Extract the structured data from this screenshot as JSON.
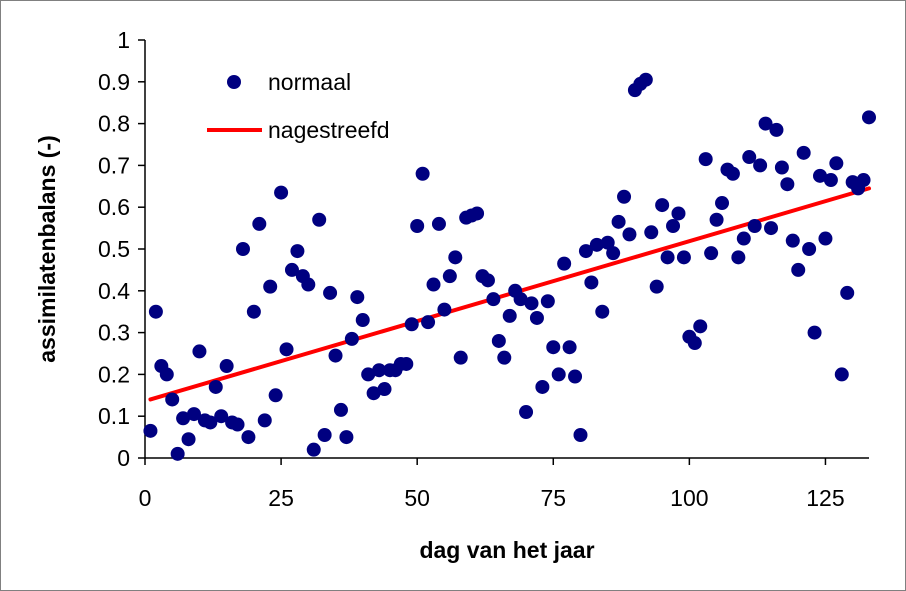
{
  "chart_data": {
    "type": "scatter",
    "title": "",
    "xlabel": "dag van het jaar",
    "ylabel": "assimilatenbalans (-)",
    "xlim": [
      0,
      133
    ],
    "ylim": [
      0,
      1
    ],
    "x_ticks": [
      0,
      25,
      50,
      75,
      100,
      125
    ],
    "x_tick_labels": [
      "0",
      "25",
      "50",
      "75",
      "100",
      "125"
    ],
    "y_ticks": [
      0,
      0.1,
      0.2,
      0.3,
      0.4,
      0.5,
      0.6,
      0.7,
      0.8,
      0.9,
      1
    ],
    "y_tick_labels": [
      "0",
      "0.1",
      "0.2",
      "0.3",
      "0.4",
      "0.5",
      "0.6",
      "0.7",
      "0.8",
      "0.9",
      "1"
    ],
    "grid": false,
    "legend_position": "top-left",
    "series": [
      {
        "name": "normaal",
        "kind": "scatter",
        "color": "#000080",
        "points": [
          [
            1,
            0.065
          ],
          [
            2,
            0.35
          ],
          [
            3,
            0.22
          ],
          [
            4,
            0.2
          ],
          [
            5,
            0.14
          ],
          [
            6,
            0.01
          ],
          [
            7,
            0.095
          ],
          [
            8,
            0.045
          ],
          [
            9,
            0.105
          ],
          [
            10,
            0.255
          ],
          [
            11,
            0.09
          ],
          [
            12,
            0.085
          ],
          [
            13,
            0.17
          ],
          [
            14,
            0.1
          ],
          [
            15,
            0.22
          ],
          [
            16,
            0.085
          ],
          [
            17,
            0.08
          ],
          [
            18,
            0.5
          ],
          [
            19,
            0.05
          ],
          [
            20,
            0.35
          ],
          [
            21,
            0.56
          ],
          [
            22,
            0.09
          ],
          [
            23,
            0.41
          ],
          [
            24,
            0.15
          ],
          [
            25,
            0.635
          ],
          [
            26,
            0.26
          ],
          [
            27,
            0.45
          ],
          [
            28,
            0.495
          ],
          [
            29,
            0.435
          ],
          [
            30,
            0.415
          ],
          [
            31,
            0.02
          ],
          [
            32,
            0.57
          ],
          [
            33,
            0.055
          ],
          [
            34,
            0.395
          ],
          [
            35,
            0.245
          ],
          [
            36,
            0.115
          ],
          [
            37,
            0.05
          ],
          [
            38,
            0.285
          ],
          [
            39,
            0.385
          ],
          [
            40,
            0.33
          ],
          [
            41,
            0.2
          ],
          [
            42,
            0.155
          ],
          [
            43,
            0.21
          ],
          [
            44,
            0.165
          ],
          [
            45,
            0.21
          ],
          [
            46,
            0.21
          ],
          [
            47,
            0.225
          ],
          [
            48,
            0.225
          ],
          [
            49,
            0.32
          ],
          [
            50,
            0.555
          ],
          [
            51,
            0.68
          ],
          [
            52,
            0.325
          ],
          [
            53,
            0.415
          ],
          [
            54,
            0.56
          ],
          [
            55,
            0.355
          ],
          [
            56,
            0.435
          ],
          [
            57,
            0.48
          ],
          [
            58,
            0.24
          ],
          [
            59,
            0.575
          ],
          [
            60,
            0.58
          ],
          [
            61,
            0.585
          ],
          [
            62,
            0.435
          ],
          [
            63,
            0.425
          ],
          [
            64,
            0.38
          ],
          [
            65,
            0.28
          ],
          [
            66,
            0.24
          ],
          [
            67,
            0.34
          ],
          [
            68,
            0.4
          ],
          [
            69,
            0.38
          ],
          [
            70,
            0.11
          ],
          [
            71,
            0.37
          ],
          [
            72,
            0.335
          ],
          [
            73,
            0.17
          ],
          [
            74,
            0.375
          ],
          [
            75,
            0.265
          ],
          [
            76,
            0.2
          ],
          [
            77,
            0.465
          ],
          [
            78,
            0.265
          ],
          [
            79,
            0.195
          ],
          [
            80,
            0.055
          ],
          [
            81,
            0.495
          ],
          [
            82,
            0.42
          ],
          [
            83,
            0.51
          ],
          [
            84,
            0.35
          ],
          [
            85,
            0.515
          ],
          [
            86,
            0.49
          ],
          [
            87,
            0.565
          ],
          [
            88,
            0.625
          ],
          [
            89,
            0.535
          ],
          [
            90,
            0.88
          ],
          [
            91,
            0.895
          ],
          [
            92,
            0.905
          ],
          [
            93,
            0.54
          ],
          [
            94,
            0.41
          ],
          [
            95,
            0.605
          ],
          [
            96,
            0.48
          ],
          [
            97,
            0.555
          ],
          [
            98,
            0.585
          ],
          [
            99,
            0.48
          ],
          [
            100,
            0.29
          ],
          [
            101,
            0.275
          ],
          [
            102,
            0.315
          ],
          [
            103,
            0.715
          ],
          [
            104,
            0.49
          ],
          [
            105,
            0.57
          ],
          [
            106,
            0.61
          ],
          [
            107,
            0.69
          ],
          [
            108,
            0.68
          ],
          [
            109,
            0.48
          ],
          [
            110,
            0.525
          ],
          [
            111,
            0.72
          ],
          [
            112,
            0.555
          ],
          [
            113,
            0.7
          ],
          [
            114,
            0.8
          ],
          [
            115,
            0.55
          ],
          [
            116,
            0.785
          ],
          [
            117,
            0.695
          ],
          [
            118,
            0.655
          ],
          [
            119,
            0.52
          ],
          [
            120,
            0.45
          ],
          [
            121,
            0.73
          ],
          [
            122,
            0.5
          ],
          [
            123,
            0.3
          ],
          [
            124,
            0.675
          ],
          [
            125,
            0.525
          ],
          [
            126,
            0.665
          ],
          [
            127,
            0.705
          ],
          [
            128,
            0.2
          ],
          [
            129,
            0.395
          ],
          [
            130,
            0.66
          ],
          [
            131,
            0.645
          ],
          [
            132,
            0.665
          ],
          [
            133,
            0.815
          ]
        ]
      },
      {
        "name": "nagestreefd",
        "kind": "line",
        "color": "#ff0000",
        "points": [
          [
            1,
            0.14
          ],
          [
            133,
            0.645
          ]
        ]
      }
    ]
  }
}
